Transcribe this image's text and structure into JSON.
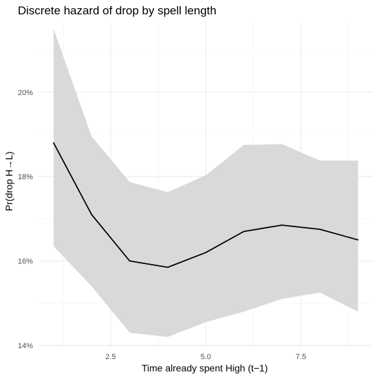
{
  "chart_data": {
    "type": "line",
    "title": "Discrete hazard of drop by spell length",
    "xlabel": "Time already spent High (t−1)",
    "ylabel": "Pr(drop H→L)",
    "x": [
      1,
      2,
      3,
      4,
      5,
      6,
      7,
      8,
      9
    ],
    "series": [
      {
        "values": [
          0.188,
          0.171,
          0.16,
          0.1585,
          0.162,
          0.167,
          0.1685,
          0.1675,
          0.165
        ],
        "lower": [
          0.1635,
          0.154,
          0.143,
          0.142,
          0.1455,
          0.148,
          0.151,
          0.1525,
          0.148
        ],
        "upper": [
          0.215,
          0.1895,
          0.1787,
          0.1763,
          0.1803,
          0.1875,
          0.1877,
          0.1838,
          0.1838
        ],
        "color": "#000000",
        "band_color": "#d9d9d9"
      }
    ],
    "xlim": [
      0.6,
      9.4
    ],
    "ylim": [
      0.1395,
      0.2165
    ],
    "xticks": [
      2.5,
      5.0,
      7.5
    ],
    "xtick_labels": [
      "2.5",
      "5.0",
      "7.5"
    ],
    "yticks": [
      0.14,
      0.16,
      0.18,
      0.2
    ],
    "ytick_labels": [
      "14%",
      "16%",
      "18%",
      "20%"
    ],
    "grid": true,
    "legend": "none"
  }
}
